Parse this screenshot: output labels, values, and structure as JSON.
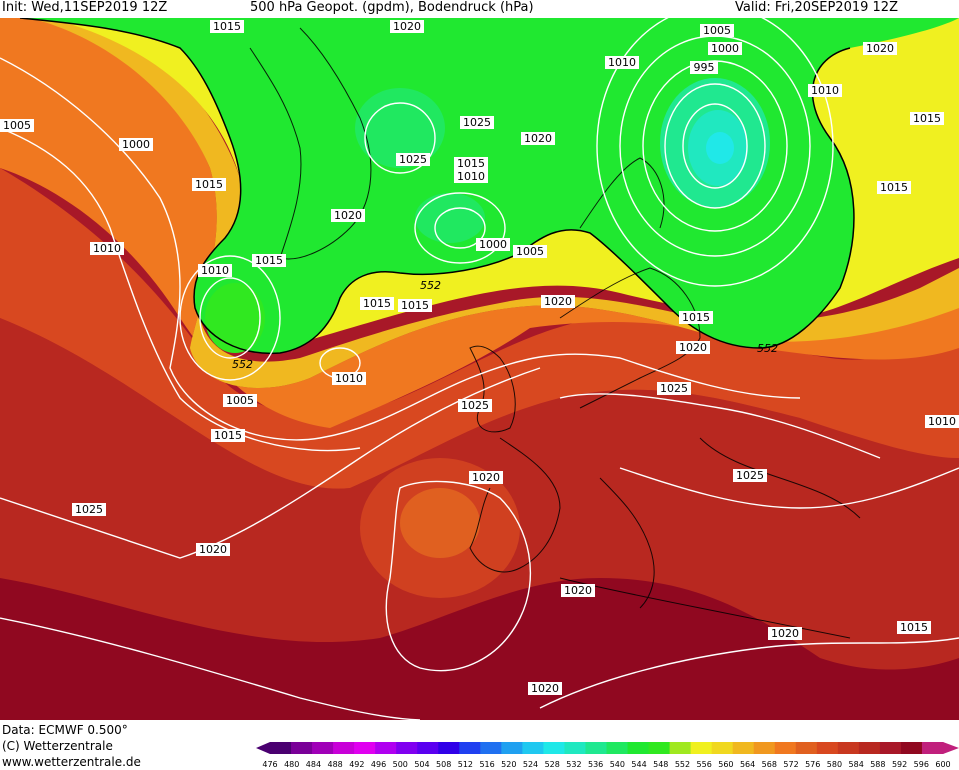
{
  "header": {
    "init": "Init: Wed,11SEP2019 12Z",
    "title": "500 hPa Geopot. (gpdm), Bodendruck (hPa)",
    "valid": "Valid: Fri,20SEP2019 12Z"
  },
  "footer": {
    "data_line": "Data: ECMWF   0.500°",
    "copyright": "(C) Wetterzentrale",
    "url": "www.wetterzentrale.de"
  },
  "colorbar": {
    "ticks": [
      "476",
      "480",
      "484",
      "488",
      "492",
      "496",
      "500",
      "504",
      "508",
      "512",
      "516",
      "520",
      "524",
      "528",
      "532",
      "536",
      "540",
      "544",
      "548",
      "552",
      "556",
      "560",
      "564",
      "568",
      "572",
      "576",
      "580",
      "584",
      "588",
      "592",
      "596",
      "600"
    ],
    "colors": [
      "#4a0070",
      "#7a0098",
      "#a000b8",
      "#c800d8",
      "#e000f0",
      "#b000f0",
      "#8000f0",
      "#5a00f0",
      "#3000e8",
      "#2040f0",
      "#2070f0",
      "#20a0f0",
      "#20c8f0",
      "#20e8e8",
      "#20e8c0",
      "#20e890",
      "#20e860",
      "#20e830",
      "#30e820",
      "#a0e820",
      "#f0f020",
      "#f0d820",
      "#f0b820",
      "#f09820",
      "#f07820",
      "#e06020",
      "#d84820",
      "#c83820",
      "#b82820",
      "#a81828",
      "#900820",
      "#c0207c"
    ]
  },
  "isobar_labels": [
    "1020",
    "1015",
    "1005",
    "1000",
    "995",
    "1010",
    "1020",
    "1015",
    "1010",
    "1025",
    "1020",
    "1025",
    "1015",
    "1010",
    "1015",
    "1005",
    "1000",
    "1020",
    "1015",
    "1010",
    "1010",
    "1015",
    "1015",
    "1010",
    "1005",
    "1015",
    "1025",
    "1020",
    "1020",
    "1025",
    "1025",
    "1020",
    "1025",
    "1020",
    "1020",
    "1020",
    "1015",
    "1015",
    "1010",
    "1015",
    "1020",
    "1000",
    "1005"
  ],
  "contour_labels": [
    "552",
    "552",
    "552"
  ]
}
